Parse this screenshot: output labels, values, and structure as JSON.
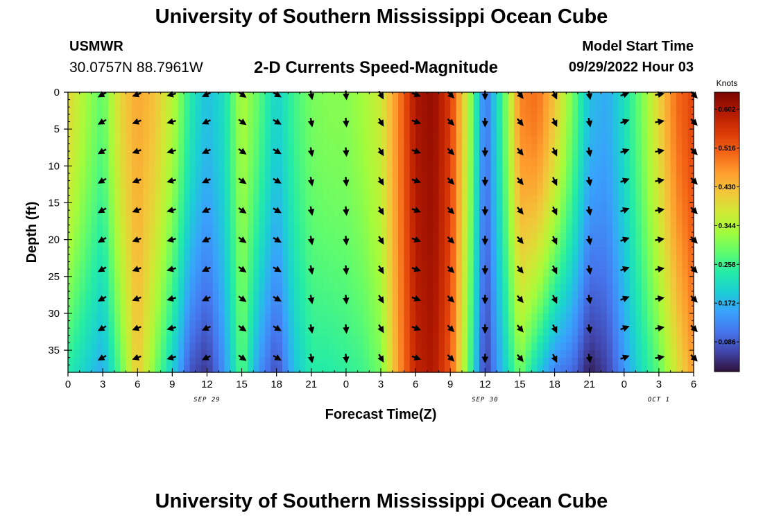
{
  "header": {
    "title": "University of Southern Mississippi Ocean Cube",
    "station": "USMWR",
    "coords": "30.0757N  88.7961W",
    "subtitle": "2-D Currents Speed-Magnitude",
    "model_start_label": "Model Start Time",
    "model_start_value": "09/29/2022 Hour 03"
  },
  "footer": {
    "title": "University of Southern Mississippi Ocean Cube"
  },
  "chart_data": {
    "type": "heatmap",
    "title": "2-D Currents Speed-Magnitude",
    "xlabel": "Forecast Time(Z)",
    "ylabel": "Depth (ft)",
    "x_hours_range": [
      0,
      54
    ],
    "x_ticks": [
      {
        "hour": 0,
        "label": "0"
      },
      {
        "hour": 3,
        "label": "3"
      },
      {
        "hour": 6,
        "label": "6"
      },
      {
        "hour": 9,
        "label": "9"
      },
      {
        "hour": 12,
        "label": "12"
      },
      {
        "hour": 15,
        "label": "15"
      },
      {
        "hour": 18,
        "label": "18"
      },
      {
        "hour": 21,
        "label": "21"
      },
      {
        "hour": 24,
        "label": "0"
      },
      {
        "hour": 27,
        "label": "3"
      },
      {
        "hour": 30,
        "label": "6"
      },
      {
        "hour": 33,
        "label": "9"
      },
      {
        "hour": 36,
        "label": "12"
      },
      {
        "hour": 39,
        "label": "15"
      },
      {
        "hour": 42,
        "label": "18"
      },
      {
        "hour": 45,
        "label": "21"
      },
      {
        "hour": 48,
        "label": "0"
      },
      {
        "hour": 51,
        "label": "3"
      },
      {
        "hour": 54,
        "label": "6"
      }
    ],
    "date_labels": [
      {
        "hour": 12,
        "label": "SEP 29"
      },
      {
        "hour": 36,
        "label": "SEP 30"
      },
      {
        "hour": 51,
        "label": "OCT 1"
      }
    ],
    "y_ticks": [
      0,
      5,
      10,
      15,
      20,
      25,
      30,
      35
    ],
    "ylim": [
      0,
      38
    ],
    "colorbar": {
      "unit": "Knots",
      "range": [
        0.02,
        0.64
      ],
      "ticks": [
        "0.086",
        "0.172",
        "0.258",
        "0.344",
        "0.430",
        "0.516",
        "0.602"
      ],
      "colors": [
        "#30123b",
        "#4145ab",
        "#4675ed",
        "#39a2fc",
        "#1bcfd4",
        "#24eca6",
        "#61fc6c",
        "#a4fc3b",
        "#d1e834",
        "#f3c63a",
        "#fe9b2d",
        "#f36315",
        "#d93806",
        "#b11901",
        "#7a0402"
      ]
    },
    "speed_profile": {
      "hours": [
        0,
        1.5,
        3,
        4.5,
        6,
        7.5,
        9,
        10.5,
        12,
        13.5,
        15,
        16.5,
        18,
        19.5,
        21,
        22.5,
        24,
        25.5,
        27,
        28.5,
        30,
        31.5,
        33,
        34.5,
        36,
        37.5,
        39,
        40.5,
        42,
        43.5,
        45,
        46.5,
        48,
        49.5,
        51,
        52.5,
        54
      ],
      "surface": [
        0.4,
        0.33,
        0.28,
        0.4,
        0.45,
        0.42,
        0.35,
        0.24,
        0.18,
        0.22,
        0.34,
        0.28,
        0.2,
        0.26,
        0.3,
        0.31,
        0.31,
        0.33,
        0.37,
        0.48,
        0.6,
        0.62,
        0.55,
        0.36,
        0.1,
        0.26,
        0.48,
        0.5,
        0.42,
        0.3,
        0.18,
        0.16,
        0.22,
        0.3,
        0.4,
        0.5,
        0.54
      ],
      "bottom": [
        0.24,
        0.2,
        0.16,
        0.28,
        0.42,
        0.3,
        0.2,
        0.08,
        0.05,
        0.14,
        0.28,
        0.14,
        0.07,
        0.18,
        0.24,
        0.24,
        0.25,
        0.26,
        0.3,
        0.46,
        0.58,
        0.6,
        0.52,
        0.3,
        0.05,
        0.18,
        0.3,
        0.2,
        0.12,
        0.1,
        0.03,
        0.06,
        0.14,
        0.22,
        0.28,
        0.38,
        0.46
      ]
    },
    "vectors": {
      "hours": [
        3,
        6,
        9,
        12,
        15,
        18,
        21,
        24,
        27,
        30,
        33,
        36,
        39,
        42,
        45,
        48,
        51,
        54
      ],
      "depths": [
        0,
        4,
        8,
        12,
        16,
        20,
        24,
        28,
        32,
        36
      ],
      "directions_deg": [
        240,
        250,
        255,
        245,
        125,
        120,
        170,
        175,
        150,
        110,
        135,
        180,
        140,
        155,
        170,
        70,
        80,
        135
      ]
    }
  }
}
